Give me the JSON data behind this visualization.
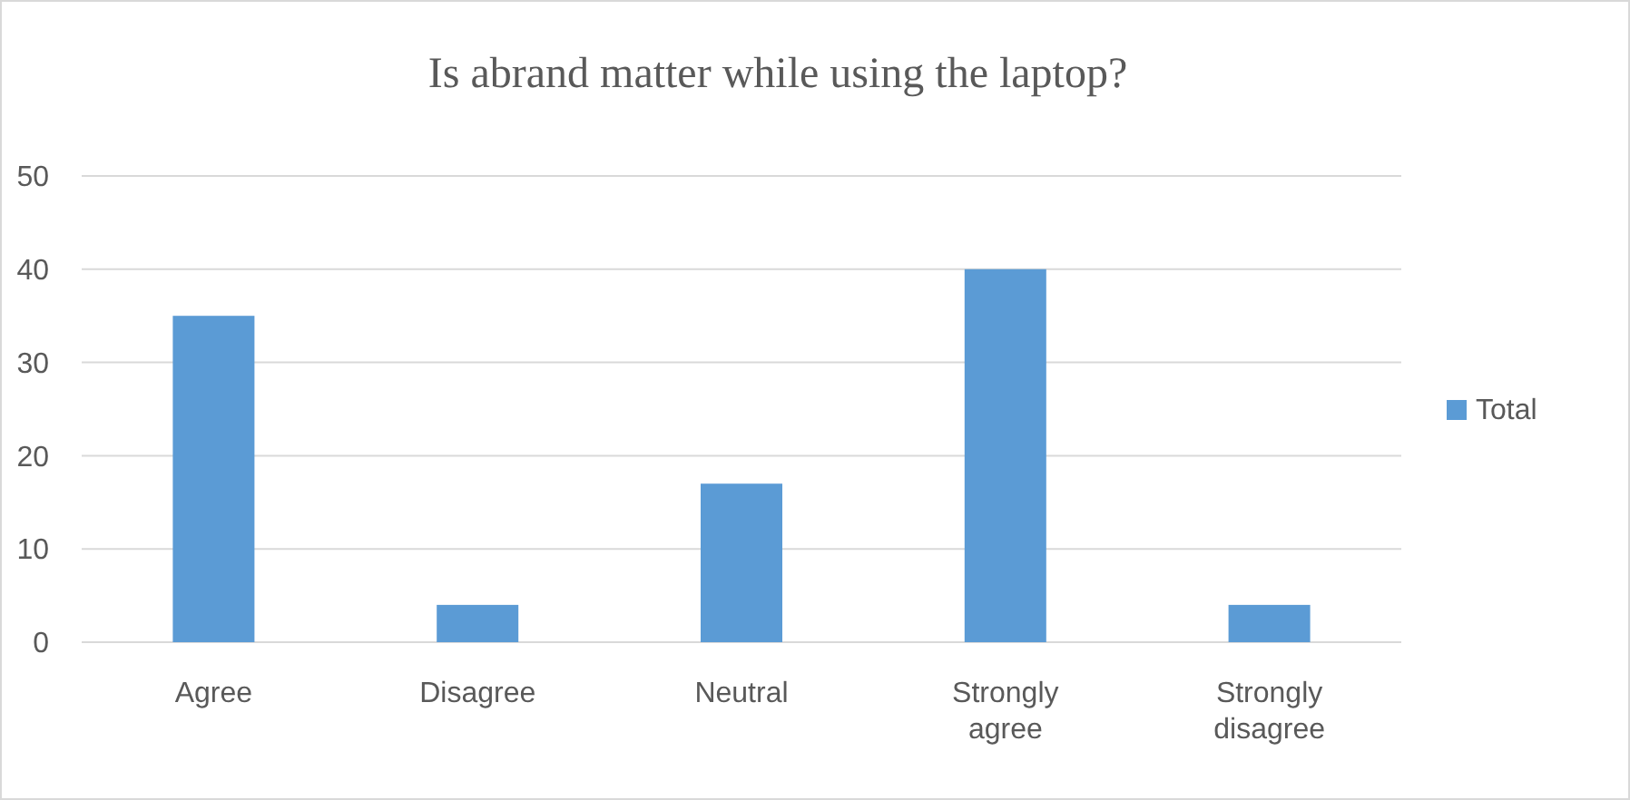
{
  "chart_data": {
    "type": "bar",
    "title": "Is abrand matter while using the laptop?",
    "categories": [
      "Agree",
      "Disagree",
      "Neutral",
      "Strongly agree",
      "Strongly disagree"
    ],
    "series": [
      {
        "name": "Total",
        "color": "#5b9bd5",
        "values": [
          35,
          4,
          17,
          40,
          4
        ]
      }
    ],
    "ylim": [
      0,
      50
    ],
    "yticks": [
      0,
      10,
      20,
      30,
      40,
      50
    ],
    "grid": "y",
    "legend": "right"
  }
}
